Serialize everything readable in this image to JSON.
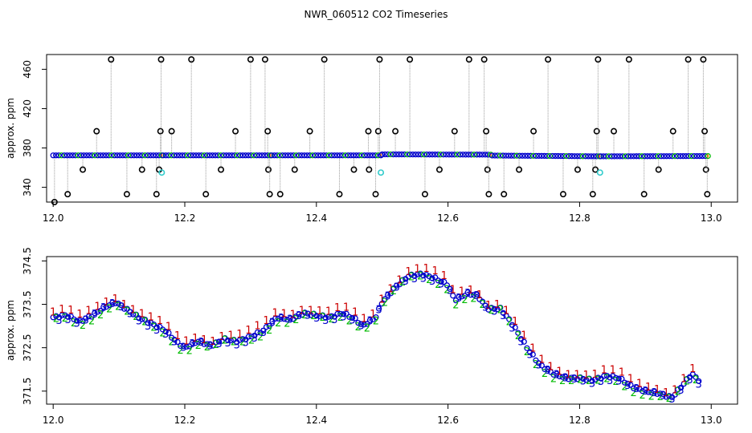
{
  "title": "NWR_060512  CO2 Timeseries",
  "colors": {
    "axis": "#000000",
    "spike_line": "#999999",
    "spike_marker": "#000000",
    "series_blue": "#0000cc",
    "series_green": "#00bb00",
    "series_red": "#cc0000",
    "outlier_cyan": "#33cccc",
    "divider_orange": "#ff8800"
  },
  "chart_data": [
    {
      "type": "scatter",
      "ylabel": "approx. ppm",
      "xlim": [
        11.99,
        13.04
      ],
      "ylim": [
        325,
        475
      ],
      "xticks": [
        "12.0",
        "12.2",
        "12.4",
        "12.6",
        "12.8",
        "13.0"
      ],
      "xtick_values": [
        12.0,
        12.2,
        12.4,
        12.6,
        12.8,
        13.0
      ],
      "yticks": [
        "340",
        "380",
        "420",
        "460"
      ],
      "ytick_values": [
        340,
        380,
        420,
        460
      ],
      "baseline": {
        "segments": [
          {
            "x": [
              12.0,
              12.165
            ],
            "y": [
              372.5,
              372.5
            ]
          },
          {
            "x": [
              12.167,
              12.33
            ],
            "y": [
              372.5,
              372.5
            ]
          },
          {
            "x": [
              12.332,
              12.498
            ],
            "y": [
              372.5,
              372.5
            ]
          },
          {
            "x": [
              12.5,
              12.665
            ],
            "y": [
              373.5,
              373.2
            ]
          },
          {
            "x": [
              12.667,
              12.83
            ],
            "y": [
              372.3,
              371.5
            ]
          },
          {
            "x": [
              12.832,
              12.995
            ],
            "y": [
              371.5,
              371.8
            ]
          }
        ]
      },
      "spikes": [
        {
          "x": 12.002,
          "y": 325
        },
        {
          "x": 12.022,
          "y": 333
        },
        {
          "x": 12.045,
          "y": 358
        },
        {
          "x": 12.066,
          "y": 397
        },
        {
          "x": 12.088,
          "y": 470
        },
        {
          "x": 12.112,
          "y": 333
        },
        {
          "x": 12.135,
          "y": 358
        },
        {
          "x": 12.157,
          "y": 333
        },
        {
          "x": 12.161,
          "y": 358
        },
        {
          "x": 12.163,
          "y": 397
        },
        {
          "x": 12.164,
          "y": 470
        },
        {
          "x": 12.18,
          "y": 397
        },
        {
          "x": 12.21,
          "y": 470
        },
        {
          "x": 12.232,
          "y": 333
        },
        {
          "x": 12.255,
          "y": 358
        },
        {
          "x": 12.277,
          "y": 397
        },
        {
          "x": 12.3,
          "y": 470
        },
        {
          "x": 12.322,
          "y": 470
        },
        {
          "x": 12.326,
          "y": 397
        },
        {
          "x": 12.327,
          "y": 358
        },
        {
          "x": 12.329,
          "y": 333
        },
        {
          "x": 12.345,
          "y": 333
        },
        {
          "x": 12.367,
          "y": 358
        },
        {
          "x": 12.39,
          "y": 397
        },
        {
          "x": 12.412,
          "y": 470
        },
        {
          "x": 12.435,
          "y": 333
        },
        {
          "x": 12.457,
          "y": 358
        },
        {
          "x": 12.479,
          "y": 397
        },
        {
          "x": 12.48,
          "y": 358
        },
        {
          "x": 12.49,
          "y": 333
        },
        {
          "x": 12.494,
          "y": 397
        },
        {
          "x": 12.496,
          "y": 470
        },
        {
          "x": 12.52,
          "y": 397
        },
        {
          "x": 12.542,
          "y": 470
        },
        {
          "x": 12.565,
          "y": 333
        },
        {
          "x": 12.587,
          "y": 358
        },
        {
          "x": 12.61,
          "y": 397
        },
        {
          "x": 12.632,
          "y": 470
        },
        {
          "x": 12.655,
          "y": 470
        },
        {
          "x": 12.658,
          "y": 397
        },
        {
          "x": 12.66,
          "y": 358
        },
        {
          "x": 12.662,
          "y": 333
        },
        {
          "x": 12.685,
          "y": 333
        },
        {
          "x": 12.708,
          "y": 358
        },
        {
          "x": 12.73,
          "y": 397
        },
        {
          "x": 12.752,
          "y": 470
        },
        {
          "x": 12.775,
          "y": 333
        },
        {
          "x": 12.797,
          "y": 358
        },
        {
          "x": 12.82,
          "y": 333
        },
        {
          "x": 12.824,
          "y": 358
        },
        {
          "x": 12.826,
          "y": 397
        },
        {
          "x": 12.828,
          "y": 470
        },
        {
          "x": 12.852,
          "y": 397
        },
        {
          "x": 12.875,
          "y": 470
        },
        {
          "x": 12.898,
          "y": 333
        },
        {
          "x": 12.92,
          "y": 358
        },
        {
          "x": 12.942,
          "y": 397
        },
        {
          "x": 12.965,
          "y": 470
        },
        {
          "x": 12.988,
          "y": 470
        },
        {
          "x": 12.99,
          "y": 397
        },
        {
          "x": 12.992,
          "y": 358
        },
        {
          "x": 12.994,
          "y": 333
        }
      ],
      "outliers": [
        {
          "x": 12.165,
          "y": 355
        },
        {
          "x": 12.498,
          "y": 355
        },
        {
          "x": 12.831,
          "y": 355
        }
      ]
    },
    {
      "type": "scatter",
      "ylabel": "approx. ppm",
      "xlim": [
        11.99,
        13.04
      ],
      "ylim": [
        371.2,
        374.6
      ],
      "xticks": [
        "12.0",
        "12.2",
        "12.4",
        "12.6",
        "12.8",
        "13.0"
      ],
      "xtick_values": [
        12.0,
        12.2,
        12.4,
        12.6,
        12.8,
        13.0
      ],
      "yticks": [
        "371.5",
        "372.5",
        "373.5",
        "374.5"
      ],
      "ytick_values": [
        371.5,
        372.5,
        373.5,
        374.5
      ],
      "label_symbols": [
        "1",
        "2",
        "3"
      ],
      "curve": {
        "x": [
          12.0,
          12.02,
          12.04,
          12.06,
          12.08,
          12.095,
          12.11,
          12.13,
          12.15,
          12.17,
          12.19,
          12.2,
          12.22,
          12.24,
          12.26,
          12.28,
          12.3,
          12.32,
          12.34,
          12.36,
          12.38,
          12.4,
          12.42,
          12.44,
          12.46,
          12.47,
          12.49,
          12.5,
          12.52,
          12.54,
          12.56,
          12.58,
          12.6,
          12.61,
          12.63,
          12.645,
          12.66,
          12.68,
          12.7,
          12.72,
          12.74,
          12.76,
          12.78,
          12.8,
          12.82,
          12.84,
          12.86,
          12.88,
          12.9,
          12.92,
          12.94,
          12.96,
          12.97,
          12.985
        ],
        "y": [
          373.2,
          373.25,
          373.1,
          373.25,
          373.45,
          373.55,
          373.4,
          373.2,
          373.05,
          372.9,
          372.6,
          372.5,
          372.65,
          372.55,
          372.7,
          372.65,
          372.75,
          372.9,
          373.2,
          373.15,
          373.3,
          373.25,
          373.2,
          373.3,
          373.15,
          373.0,
          373.2,
          373.55,
          373.9,
          374.15,
          374.2,
          374.1,
          373.95,
          373.6,
          373.75,
          373.7,
          373.4,
          373.4,
          373.0,
          372.5,
          372.1,
          371.9,
          371.8,
          371.8,
          371.75,
          371.85,
          371.8,
          371.6,
          371.5,
          371.45,
          371.35,
          371.7,
          371.9,
          371.7
        ]
      }
    }
  ]
}
